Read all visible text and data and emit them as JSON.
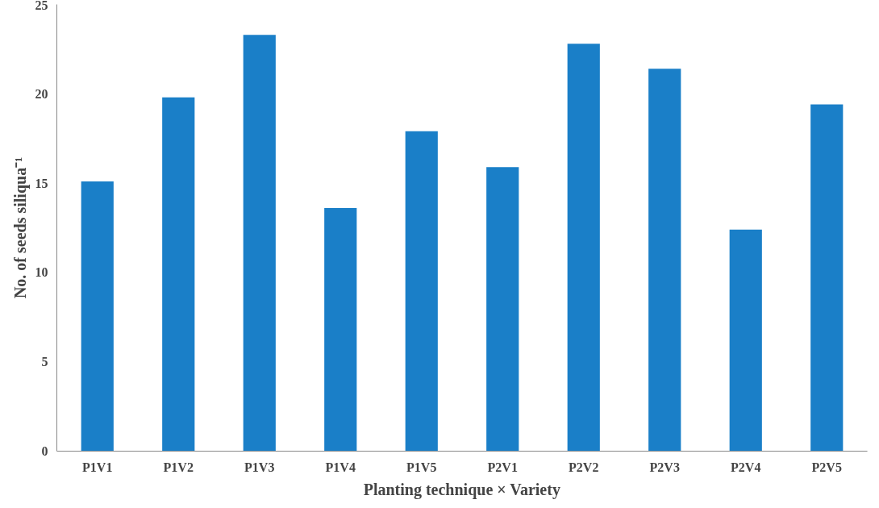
{
  "chart_data": {
    "type": "bar",
    "xlabel": "Planting technique × Variety",
    "ylabel": "No. of seeds siliqua⁻¹",
    "categories": [
      "P1V1",
      "P1V2",
      "P1V3",
      "P1V4",
      "P1V5",
      "P2V1",
      "P2V2",
      "P2V3",
      "P2V4",
      "P2V5"
    ],
    "values": [
      15.1,
      19.8,
      23.3,
      13.6,
      17.9,
      15.9,
      22.8,
      21.4,
      12.4,
      19.4
    ],
    "color": "#1a7fc8",
    "ylim": [
      0,
      25
    ],
    "yticks": [
      0,
      5,
      10,
      15,
      20,
      25
    ],
    "grid": false
  }
}
